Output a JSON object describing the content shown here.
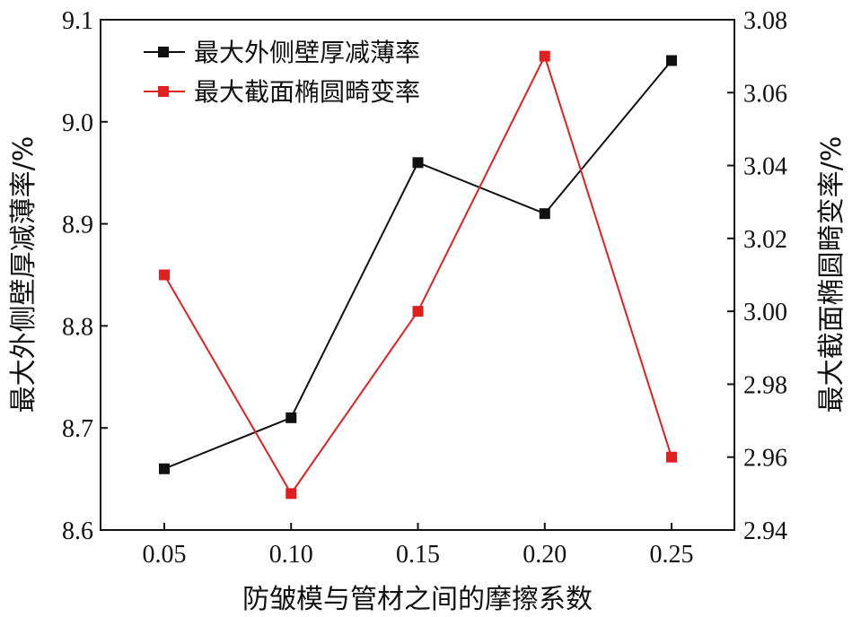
{
  "chart_data": {
    "type": "line",
    "x": [
      "0.05",
      "0.10",
      "0.15",
      "0.20",
      "0.25"
    ],
    "xlabel": "防皱模与管材之间的摩擦系数",
    "ylabel_left": "最大外侧壁厚减薄率/%",
    "ylabel_right": "最大截面椭圆畸变率/%",
    "ylim_left": [
      8.6,
      9.1
    ],
    "ylim_right": [
      2.94,
      3.08
    ],
    "yticks_left": [
      "8.6",
      "8.7",
      "8.8",
      "8.9",
      "9.0",
      "9.1"
    ],
    "yticks_right": [
      "2.94",
      "2.96",
      "2.98",
      "3.00",
      "3.02",
      "3.04",
      "3.06",
      "3.08"
    ],
    "legend_position": "top-left",
    "grid": false,
    "series": [
      {
        "name": "最大外侧壁厚减薄率",
        "axis": "left",
        "color": "#111111",
        "values": [
          8.66,
          8.71,
          8.96,
          8.91,
          9.06
        ]
      },
      {
        "name": "最大截面椭圆畸变率",
        "axis": "right",
        "color": "#e02020",
        "values": [
          3.01,
          2.95,
          3.0,
          3.07,
          2.96
        ]
      }
    ]
  }
}
